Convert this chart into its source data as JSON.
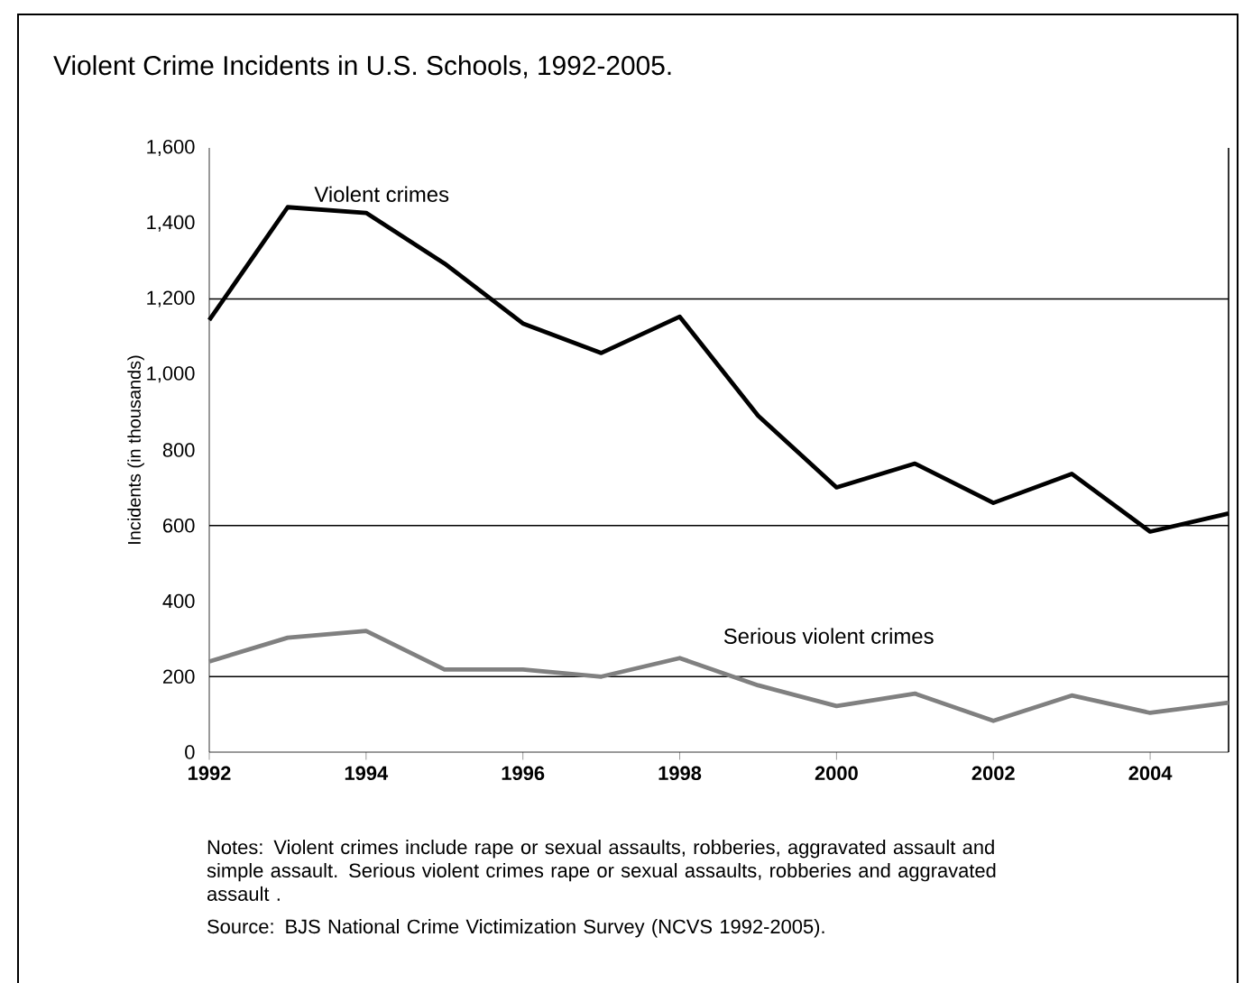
{
  "chart_data": {
    "type": "line",
    "title": "Violent Crime Incidents in U.S. Schools, 1992-2005.",
    "ylabel": "Incidents (in thousands)",
    "x": [
      1992,
      1993,
      1994,
      1995,
      1996,
      1997,
      1998,
      1999,
      2000,
      2001,
      2002,
      2003,
      2004,
      2005
    ],
    "series": [
      {
        "name": "Violent crimes",
        "color": "#000000",
        "values": [
          1144,
          1443,
          1428,
          1294,
          1135,
          1057,
          1153,
          891,
          701,
          764,
          660,
          737,
          584,
          632
        ]
      },
      {
        "name": "Serious violent crimes",
        "color": "#808080",
        "values": [
          240,
          303,
          321,
          219,
          219,
          200,
          249,
          177,
          122,
          155,
          83,
          150,
          104,
          131
        ]
      }
    ],
    "xlim": [
      1992,
      2005
    ],
    "xticks": [
      1992,
      1994,
      1996,
      1998,
      2000,
      2002,
      2004
    ],
    "ylim": [
      0,
      1600
    ],
    "yticks": [
      0,
      200,
      400,
      600,
      800,
      {
        "value": 1000,
        "label": "1,000"
      },
      {
        "value": 1200,
        "label": "1,200"
      },
      {
        "value": 1400,
        "label": "1,400"
      },
      {
        "value": 1600,
        "label": "1,600"
      }
    ],
    "ref_lines": [
      {
        "axis": "y",
        "value": 200
      },
      {
        "axis": "y",
        "value": 600
      },
      {
        "axis": "y",
        "value": 1200
      }
    ],
    "grid": false,
    "legend": false,
    "marker": "none",
    "line_style": "solid",
    "annotations": [
      "Notes:  Violent crimes include rape or sexual assaults, robberies, aggravated assault and simple assault.  Serious violent crimes rape or  sexual assaults, robberies and aggravated assault .",
      "Source: BJS National Crime Victimization Survey (NCVS 1992-2005)."
    ]
  }
}
